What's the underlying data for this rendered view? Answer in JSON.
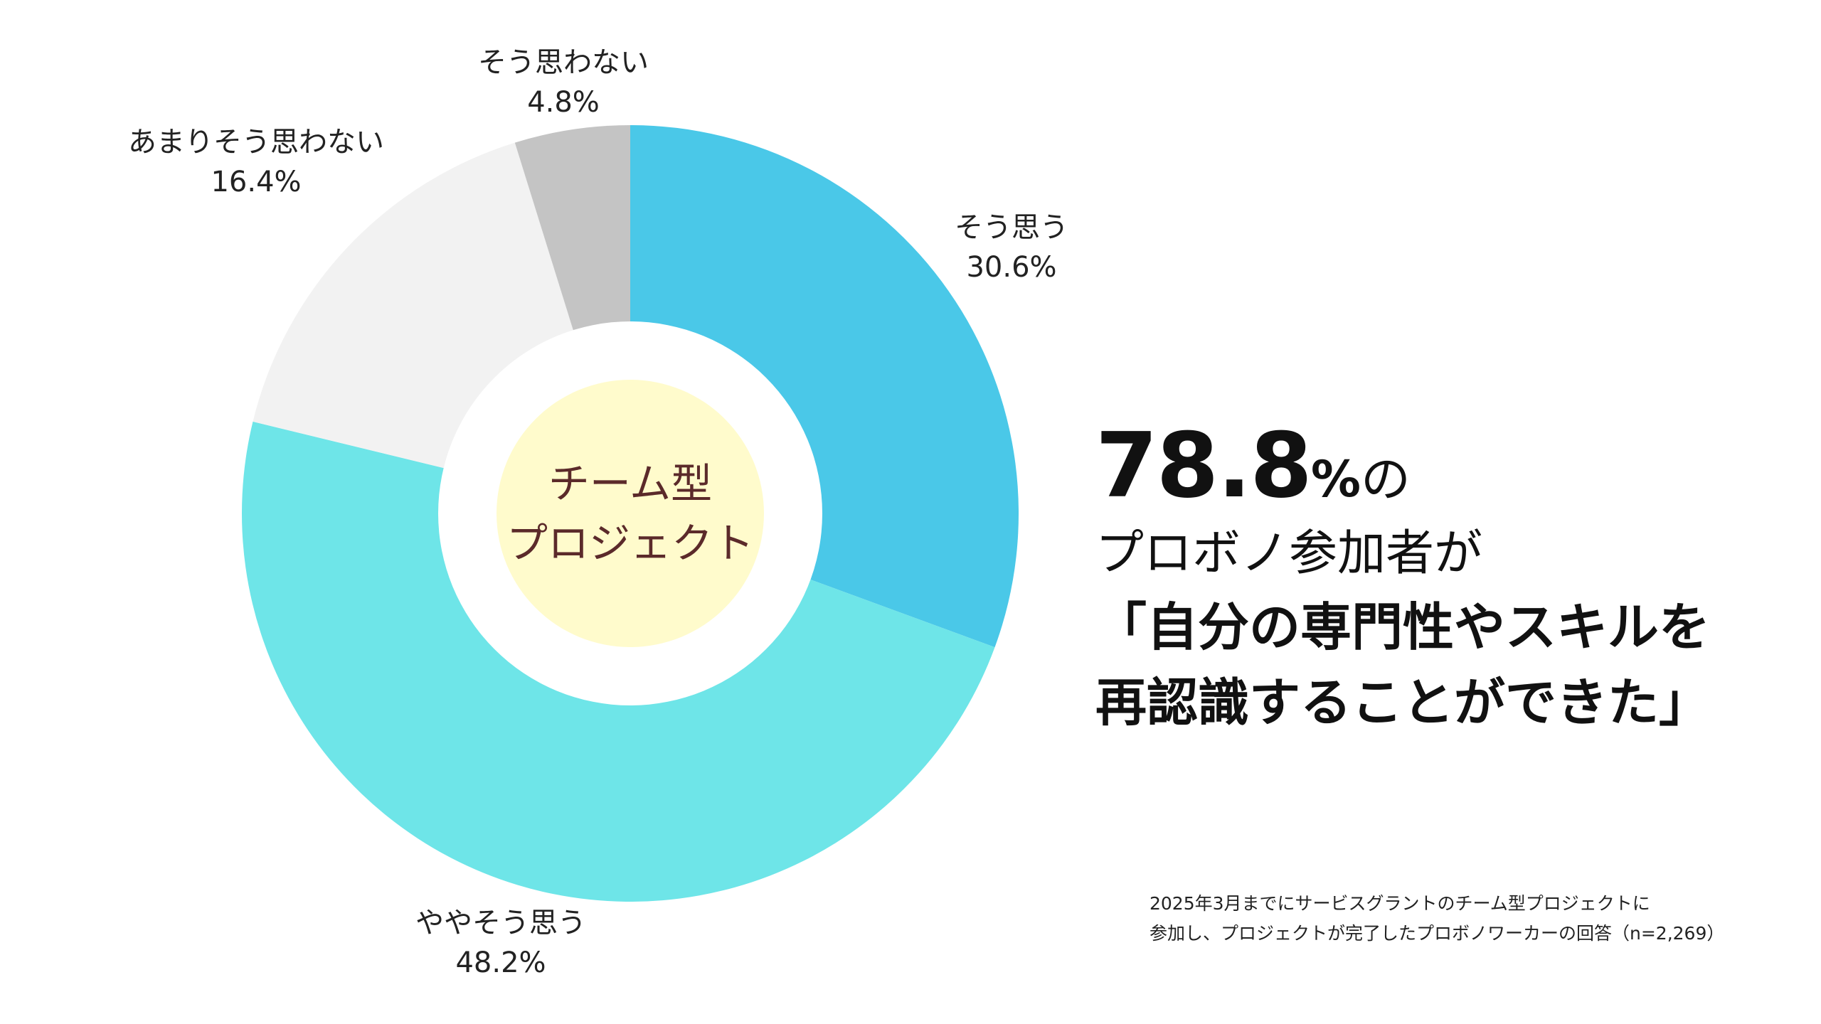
{
  "chart_data": {
    "type": "pie",
    "categories": [
      "そう思う",
      "ややそう思う",
      "あまりそう思わない",
      "そう思わない"
    ],
    "values": [
      30.6,
      48.2,
      16.4,
      4.8
    ],
    "value_labels": [
      "30.6%",
      "48.2%",
      "16.4%",
      "4.8%"
    ],
    "colors": [
      "#4ac8e8",
      "#6ee5e8",
      "#f2f2f2",
      "#c4c4c4"
    ],
    "center_line1": "チーム型",
    "center_line2": "プロジェクト",
    "center_color": "#fffbcc",
    "legend": "none"
  },
  "headline": {
    "number": "78.8",
    "percent_sign": "%",
    "particle": "の",
    "line2": "プロボノ参加者が",
    "line3": "「自分の専門性やスキルを",
    "line4": "再認識することができた」"
  },
  "footnote": {
    "line1": "2025年3月までにサービスグラントのチーム型プロジェクトに",
    "line2": "参加し、プロジェクトが完了したプロボノワーカーの回答（n=2,269）"
  }
}
